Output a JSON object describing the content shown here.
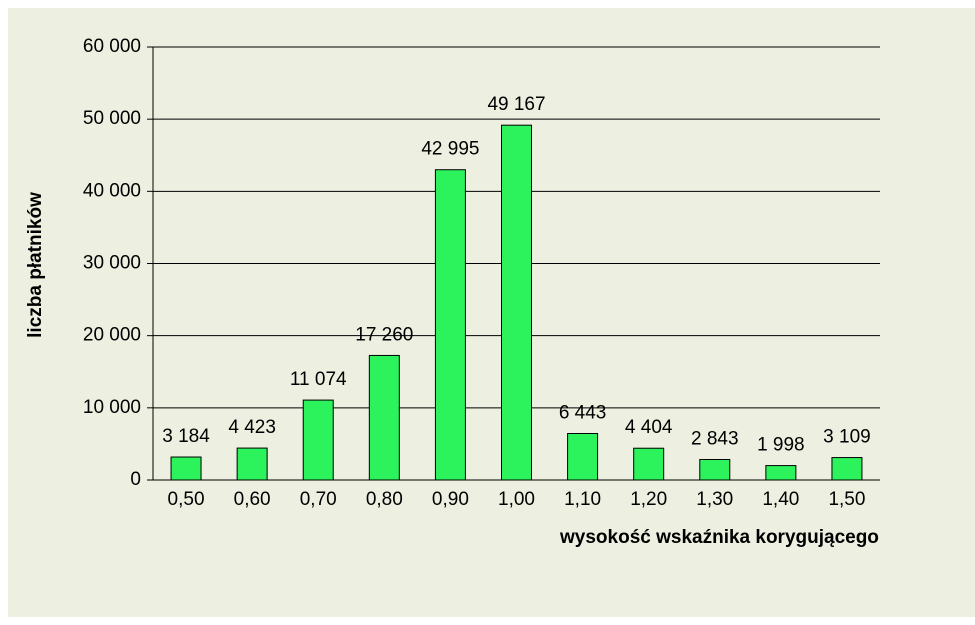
{
  "chart_data": {
    "type": "bar",
    "x_label": "wysokość wskaźnika korygującego",
    "y_label": "liczba płatników",
    "categories": [
      "0,50",
      "0,60",
      "0,70",
      "0,80",
      "0,90",
      "1,00",
      "1,10",
      "1,20",
      "1,30",
      "1,40",
      "1,50"
    ],
    "values": [
      3184,
      4423,
      11074,
      17260,
      42995,
      49167,
      6443,
      4404,
      2843,
      1998,
      3109
    ],
    "value_labels": [
      "3 184",
      "4 423",
      "11 074",
      "17 260",
      "42 995",
      "49 167",
      "6 443",
      "4 404",
      "2 843",
      "1 998",
      "3 109"
    ],
    "color": "#2cf25c",
    "ylim": [
      0,
      60000
    ],
    "yticks": [
      {
        "value": 0,
        "label": "0"
      },
      {
        "value": 10000,
        "label": "10 000"
      },
      {
        "value": 20000,
        "label": "20 000"
      },
      {
        "value": 30000,
        "label": "30 000"
      },
      {
        "value": 40000,
        "label": "40 000"
      },
      {
        "value": 50000,
        "label": "50 000"
      },
      {
        "value": 60000,
        "label": "60 000"
      }
    ],
    "grid": true
  }
}
